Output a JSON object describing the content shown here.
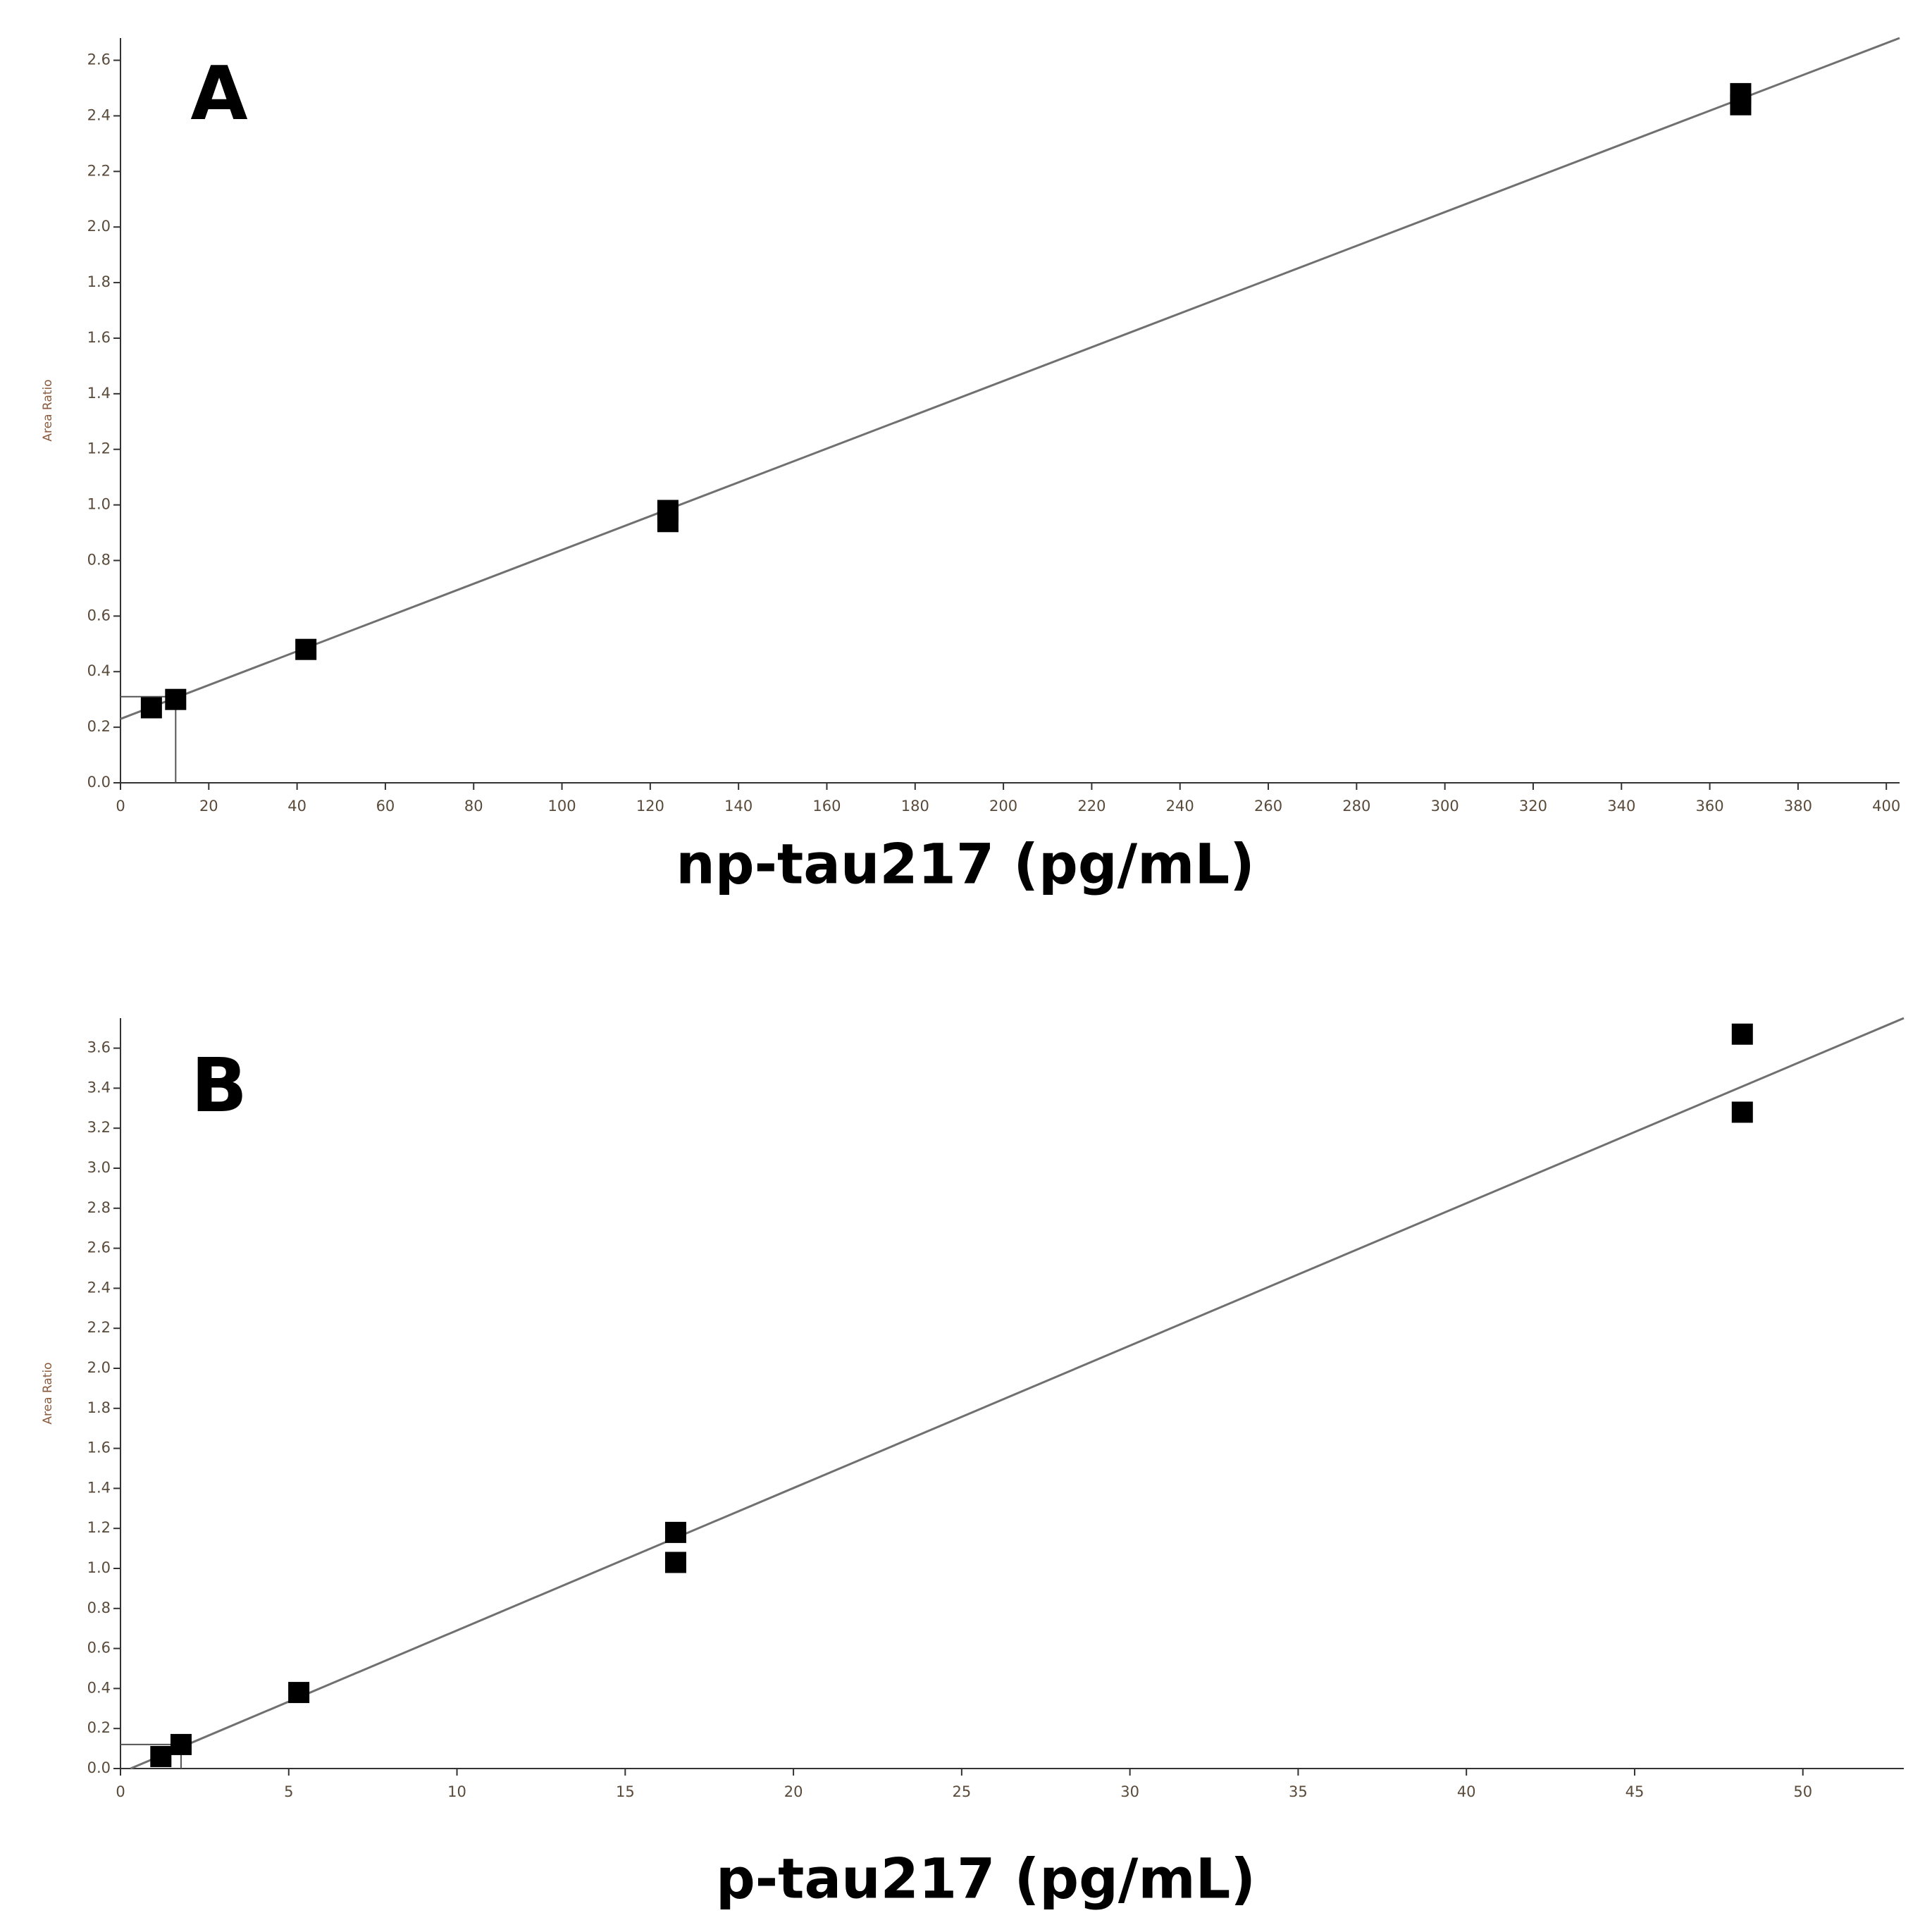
{
  "chart_data": [
    {
      "type": "scatter",
      "title": "A",
      "x_label": "np-tau217 (pg/mL)",
      "y_label": "Area Ratio",
      "xlim": [
        0,
        403
      ],
      "ylim": [
        0,
        2.68
      ],
      "xticks": [
        0,
        20,
        40,
        60,
        80,
        100,
        120,
        140,
        160,
        180,
        200,
        220,
        240,
        260,
        280,
        300,
        320,
        340,
        360,
        380,
        400
      ],
      "yticks": [
        {
          "value": 0,
          "label": "0.0"
        },
        0.2,
        0.4,
        0.6,
        0.8,
        {
          "value": 1,
          "label": "1.0"
        },
        1.2,
        1.4,
        1.6,
        1.8,
        {
          "value": 2,
          "label": "2.0"
        },
        2.2,
        2.4,
        2.6
      ],
      "series": [
        {
          "color": "#000000",
          "x": [
            7,
            12.5,
            42,
            124,
            124,
            367,
            367
          ],
          "values": [
            0.27,
            0.3,
            0.48,
            0.94,
            0.98,
            2.44,
            2.48
          ]
        }
      ],
      "fit_line": {
        "color": "#707070",
        "x": [
          0,
          403
        ],
        "y": [
          0.23,
          2.68
        ]
      },
      "loq_guide": {
        "x": 12.5,
        "y": 0.31
      }
    },
    {
      "type": "scatter",
      "title": "B",
      "x_label": "p-tau217 (pg/mL)",
      "y_label": "Area Ratio",
      "xlim": [
        0,
        53
      ],
      "ylim": [
        0,
        3.75
      ],
      "xticks": [
        0,
        5,
        10,
        15,
        20,
        25,
        30,
        35,
        40,
        45,
        50
      ],
      "yticks": [
        {
          "value": 0,
          "label": "0.0"
        },
        0.2,
        0.4,
        0.6,
        0.8,
        {
          "value": 1,
          "label": "1.0"
        },
        1.2,
        1.4,
        1.6,
        1.8,
        {
          "value": 2,
          "label": "2.0"
        },
        2.2,
        2.4,
        2.6,
        2.8,
        {
          "value": 3,
          "label": "3.0"
        },
        3.2,
        3.4,
        3.6
      ],
      "series": [
        {
          "color": "#000000",
          "x": [
            1.2,
            1.8,
            5.3,
            16.5,
            16.5,
            48.2,
            48.2
          ],
          "values": [
            0.06,
            0.12,
            0.38,
            1.03,
            1.18,
            3.28,
            3.67
          ]
        }
      ],
      "fit_line": {
        "color": "#707070",
        "x": [
          0.3,
          53
        ],
        "y": [
          0,
          3.75
        ]
      },
      "loq_guide": {
        "x": 1.8,
        "y": 0.12
      }
    }
  ]
}
